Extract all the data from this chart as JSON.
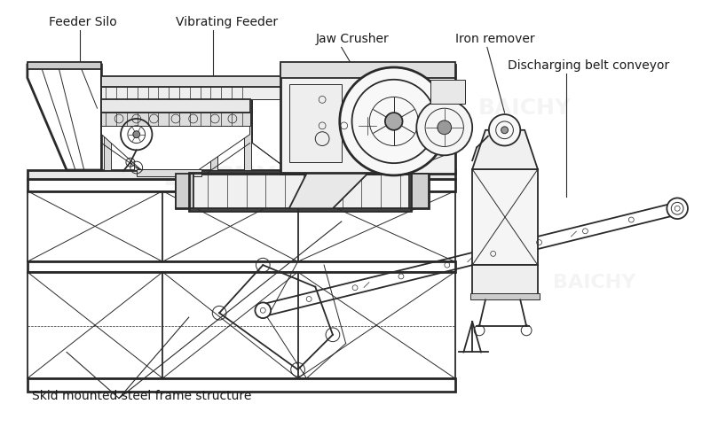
{
  "background_color": "#ffffff",
  "line_color": "#2a2a2a",
  "label_color": "#1a1a1a",
  "labels": {
    "feeder_silo": "Feeder Silo",
    "vibrating_feeder": "Vibrating Feeder",
    "jaw_crusher": "Jaw Crusher",
    "iron_remover": "Iron remover",
    "discharging_belt": "Discharging belt conveyor",
    "skid_frame": "Skid mounted steel frame structure"
  },
  "figsize": [
    8.0,
    5.0
  ],
  "dpi": 100
}
